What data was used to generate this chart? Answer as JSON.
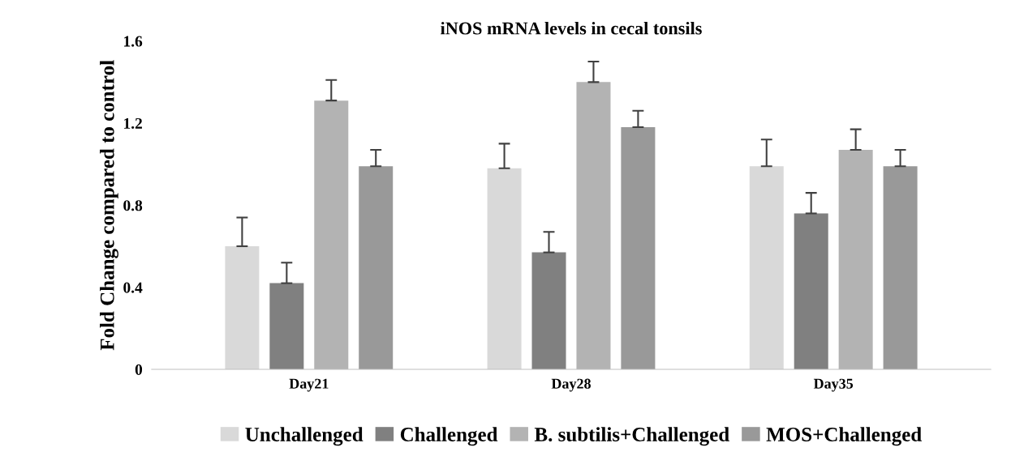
{
  "chart_data": {
    "type": "bar",
    "title": "iNOS mRNA levels in cecal tonsils",
    "ylabel": "Fold Change compared to control",
    "categories": [
      "Day21",
      "Day28",
      "Day35"
    ],
    "series": [
      {
        "name": "Unchallenged",
        "color": "#d9d9d9",
        "values": [
          0.6,
          0.98,
          0.99
        ],
        "errors": [
          [
            0.6,
            0.74
          ],
          [
            0.98,
            1.1
          ],
          [
            0.99,
            1.12
          ]
        ]
      },
      {
        "name": "Challenged",
        "color": "#808080",
        "values": [
          0.42,
          0.57,
          0.76
        ],
        "errors": [
          [
            0.42,
            0.52
          ],
          [
            0.57,
            0.67
          ],
          [
            0.76,
            0.86
          ]
        ]
      },
      {
        "name": "B. subtilis+Challenged",
        "color": "#b3b3b3",
        "values": [
          1.31,
          1.4,
          1.07
        ],
        "errors": [
          [
            1.31,
            1.41
          ],
          [
            1.4,
            1.5
          ],
          [
            1.07,
            1.17
          ]
        ]
      },
      {
        "name": "MOS+Challenged",
        "color": "#999999",
        "values": [
          0.99,
          1.18,
          0.99
        ],
        "errors": [
          [
            0.99,
            1.07
          ],
          [
            1.18,
            1.26
          ],
          [
            0.99,
            1.07
          ]
        ]
      }
    ],
    "ylim": [
      0,
      1.6
    ],
    "yticks": [
      {
        "value": 0,
        "label": "0"
      },
      0.4,
      0.8,
      1.2,
      1.6
    ],
    "grid": false,
    "legend": "bottom"
  }
}
